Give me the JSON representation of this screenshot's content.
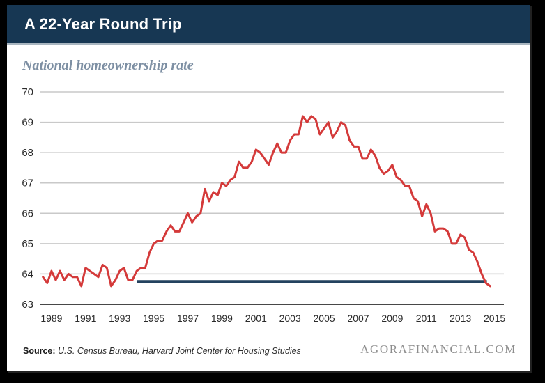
{
  "page": {
    "header_title": "A 22-Year Round Trip",
    "footer": {
      "source_label": "Source:",
      "source_text": "U.S. Census Bureau, Harvard Joint Center for Housing Studies",
      "brand": "AGORAFINANCIAL.COM"
    }
  },
  "colors": {
    "header_bar": "#173753",
    "line_red": "#d43a3a",
    "reference_navy": "#24425f",
    "subtitle_text": "#7d8fa3",
    "gridline": "#c9c9c9",
    "axis_line": "#474747"
  },
  "chart_data": {
    "type": "line",
    "title": "National homeownership rate",
    "xlabel": "",
    "ylabel": "",
    "grid": true,
    "legend": "none",
    "ylim": [
      63,
      70
    ],
    "yticks": [
      63,
      64,
      65,
      66,
      67,
      68,
      69,
      70
    ],
    "xticks": [
      1989,
      1991,
      1993,
      1995,
      1997,
      1999,
      2001,
      2003,
      2005,
      2007,
      2009,
      2011,
      2013,
      2015
    ],
    "x_domain": [
      1988.85,
      2016.05
    ],
    "tick_midyear_offset": 0.5,
    "series": [
      {
        "name": "National homeownership rate (%)",
        "color": "#d43a3a",
        "x_start": 1989.0,
        "x_step": 0.25,
        "values": [
          63.9,
          63.7,
          64.1,
          63.8,
          64.1,
          63.8,
          64.0,
          63.9,
          63.9,
          63.6,
          64.2,
          64.1,
          64.0,
          63.9,
          64.3,
          64.2,
          63.6,
          63.8,
          64.1,
          64.2,
          63.8,
          63.8,
          64.1,
          64.2,
          64.2,
          64.7,
          65.0,
          65.1,
          65.1,
          65.4,
          65.6,
          65.4,
          65.4,
          65.7,
          66.0,
          65.7,
          65.9,
          66.0,
          66.8,
          66.4,
          66.7,
          66.6,
          67.0,
          66.9,
          67.1,
          67.2,
          67.7,
          67.5,
          67.5,
          67.7,
          68.1,
          68.0,
          67.8,
          67.6,
          68.0,
          68.3,
          68.0,
          68.0,
          68.4,
          68.6,
          68.6,
          69.2,
          69.0,
          69.2,
          69.1,
          68.6,
          68.8,
          69.0,
          68.5,
          68.7,
          69.0,
          68.9,
          68.4,
          68.2,
          68.2,
          67.8,
          67.8,
          68.1,
          67.9,
          67.5,
          67.3,
          67.4,
          67.6,
          67.2,
          67.1,
          66.9,
          66.9,
          66.5,
          66.4,
          65.9,
          66.3,
          66.0,
          65.4,
          65.5,
          65.5,
          65.4,
          65.0,
          65.0,
          65.3,
          65.2,
          64.8,
          64.7,
          64.4,
          64.0,
          63.7,
          63.6
        ]
      }
    ],
    "reference_line": {
      "value": 63.75,
      "x_start": 1994.5,
      "x_end": 2015.05,
      "color": "#24425f"
    }
  }
}
